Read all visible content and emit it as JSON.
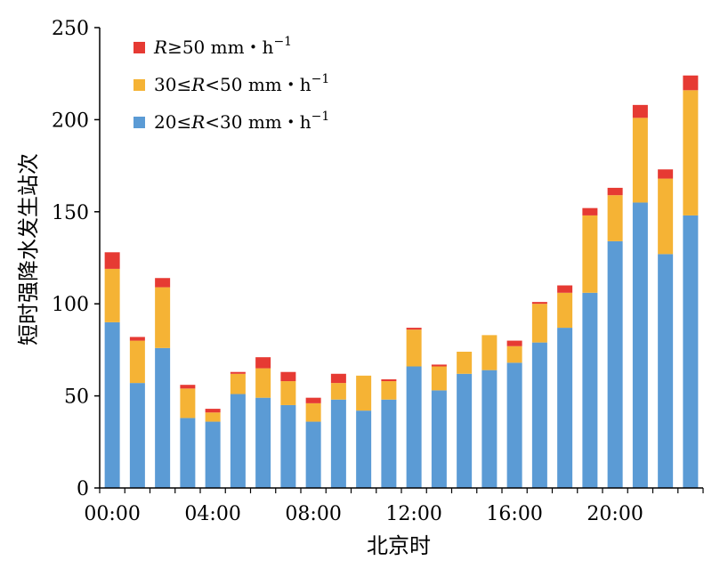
{
  "chart_data": {
    "type": "bar",
    "stacked": true,
    "title": "",
    "xlabel": "北京时",
    "ylabel": "短时强降水发生站次",
    "ylim": [
      0,
      250
    ],
    "yticks": [
      0,
      50,
      100,
      150,
      200,
      250
    ],
    "xtick_labels": [
      "00:00",
      "04:00",
      "08:00",
      "12:00",
      "16:00",
      "20:00"
    ],
    "categories": [
      "00",
      "01",
      "02",
      "03",
      "04",
      "05",
      "06",
      "07",
      "08",
      "09",
      "10",
      "11",
      "12",
      "13",
      "14",
      "15",
      "16",
      "17",
      "18",
      "19",
      "20",
      "21",
      "22",
      "23"
    ],
    "series": [
      {
        "name": "20≤R<30 mm・h⁻¹",
        "color": "#5B9BD5",
        "values": [
          90,
          57,
          76,
          38,
          36,
          51,
          49,
          45,
          36,
          48,
          42,
          48,
          66,
          53,
          62,
          64,
          68,
          79,
          87,
          106,
          134,
          155,
          127,
          148
        ]
      },
      {
        "name": "30≤R<50 mm・h⁻¹",
        "color": "#F5B335",
        "values": [
          29,
          23,
          33,
          16,
          5,
          11,
          16,
          13,
          10,
          9,
          19,
          10,
          20,
          13,
          12,
          19,
          9,
          21,
          19,
          42,
          25,
          46,
          41,
          68
        ]
      },
      {
        "name": "R≥50 mm・h⁻¹",
        "color": "#E63A33",
        "values": [
          9,
          2,
          5,
          2,
          2,
          1,
          6,
          5,
          3,
          5,
          0,
          1,
          1,
          1,
          0,
          0,
          3,
          1,
          4,
          4,
          4,
          7,
          5,
          8
        ]
      }
    ],
    "legend": {
      "position": "top-left",
      "items": [
        {
          "prefix": "",
          "italic": "R",
          "rest": "≥50 mm・h",
          "sup": "−1",
          "color": "#E63A33"
        },
        {
          "prefix": "30≤",
          "italic": "R",
          "rest": "<50 mm・h",
          "sup": "−1",
          "color": "#F5B335"
        },
        {
          "prefix": "20≤",
          "italic": "R",
          "rest": "<30 mm・h",
          "sup": "−1",
          "color": "#5B9BD5"
        }
      ]
    },
    "grid": false
  }
}
